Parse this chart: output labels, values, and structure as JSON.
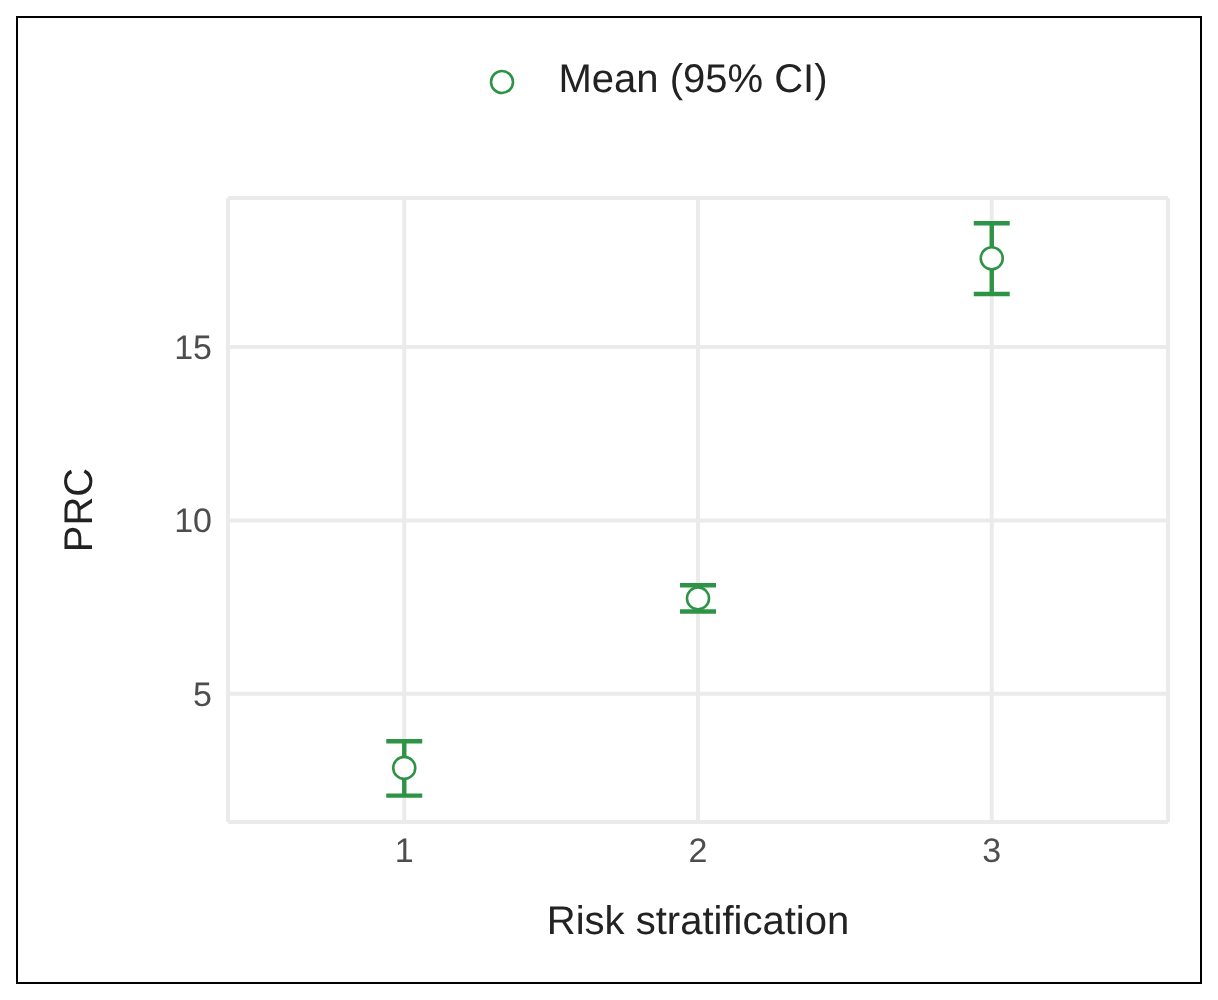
{
  "chart_data": {
    "type": "scatter",
    "xlabel": "Risk stratification",
    "ylabel": "PRC",
    "x": [
      1,
      2,
      3
    ],
    "series": [
      {
        "name": "Mean (95% CI)",
        "color": "#2e9445",
        "values": [
          2.86,
          7.75,
          17.56
        ],
        "errors": [
          [
            2.06,
            3.63
          ],
          [
            7.37,
            8.13
          ],
          [
            16.53,
            18.57
          ]
        ]
      }
    ],
    "xlim": [
      0.4,
      3.6
    ],
    "xticks": [
      1,
      2,
      3
    ],
    "ylim": [
      1.3,
      19.3
    ],
    "yticks": [
      5,
      10,
      15
    ],
    "grid": true,
    "legend": "top",
    "marker": "circle"
  }
}
